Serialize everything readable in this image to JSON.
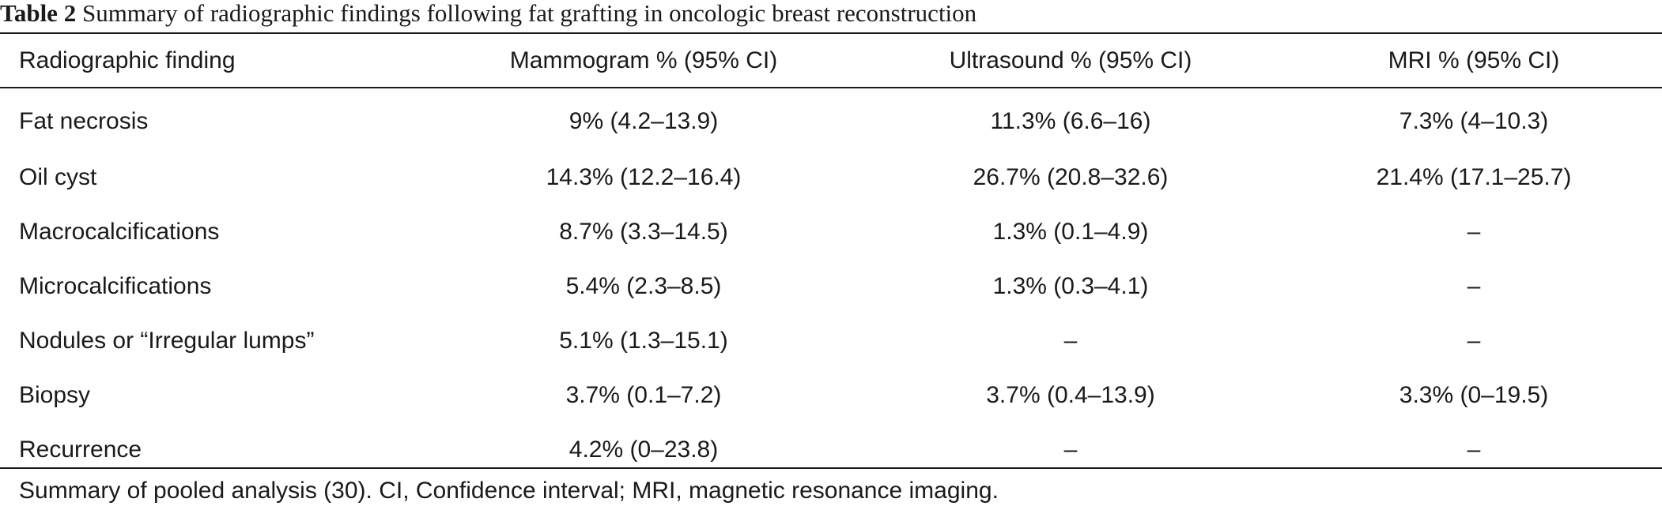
{
  "caption": {
    "label": "Table 2",
    "text": "Summary of radiographic findings following fat grafting in oncologic breast reconstruction"
  },
  "table": {
    "headers": [
      "Radiographic finding",
      "Mammogram % (95% CI)",
      "Ultrasound % (95% CI)",
      "MRI % (95% CI)"
    ],
    "rows": [
      [
        "Fat necrosis",
        "9% (4.2–13.9)",
        "11.3% (6.6–16)",
        "7.3% (4–10.3)"
      ],
      [
        "Oil cyst",
        "14.3% (12.2–16.4)",
        "26.7% (20.8–32.6)",
        "21.4% (17.1–25.7)"
      ],
      [
        "Macrocalcifications",
        "8.7% (3.3–14.5)",
        "1.3% (0.1–4.9)",
        "–"
      ],
      [
        "Microcalcifications",
        "5.4% (2.3–8.5)",
        "1.3% (0.3–4.1)",
        "–"
      ],
      [
        "Nodules or “Irregular lumps”",
        "5.1% (1.3–15.1)",
        "–",
        "–"
      ],
      [
        "Biopsy",
        "3.7% (0.1–7.2)",
        "3.7% (0.4–13.9)",
        "3.3% (0–19.5)"
      ],
      [
        "Recurrence",
        "4.2% (0–23.8)",
        "–",
        "–"
      ]
    ]
  },
  "footnote": "Summary of pooled analysis (30). CI, Confidence interval; MRI, magnetic resonance imaging."
}
